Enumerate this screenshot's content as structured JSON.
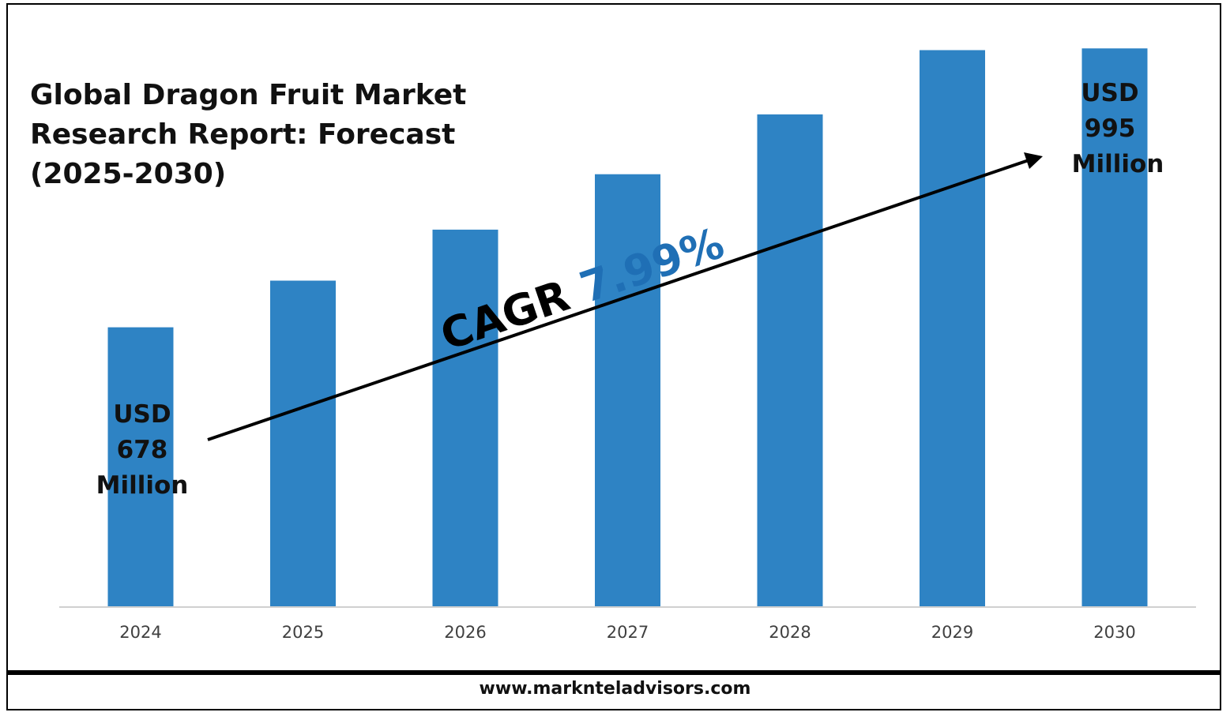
{
  "title_lines": [
    "Global Dragon Fruit Market",
    "Research Report: Forecast",
    "(2025-2030)"
  ],
  "website": "www.marknteladvisors.com",
  "colors": {
    "bar": "#2e83c4",
    "cagr_value": "#1f6fb5",
    "axis": "#d0d0d0"
  },
  "chart_data": {
    "type": "bar",
    "categories": [
      "2024",
      "2025",
      "2026",
      "2027",
      "2028",
      "2029",
      "2030"
    ],
    "values": [
      678,
      731,
      789,
      852,
      920,
      993,
      995
    ],
    "ylim": [
      360,
      1050
    ],
    "grid": false,
    "annotations": {
      "start": [
        "USD",
        "678",
        "Million"
      ],
      "end": [
        "USD",
        "995",
        "Million"
      ],
      "cagr_label": "CAGR",
      "cagr_value": "7.99%"
    }
  }
}
